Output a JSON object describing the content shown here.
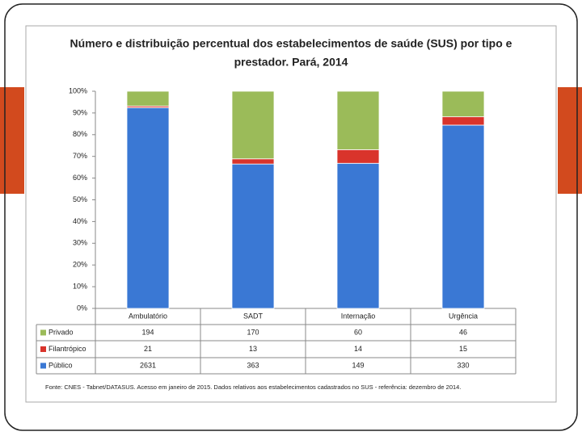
{
  "chart_data": {
    "type": "bar",
    "stacking": "percent",
    "title": [
      "Número e distribuição percentual dos estabelecimentos de saúde (SUS) por tipo e",
      "prestador. Pará, 2014"
    ],
    "categories": [
      "Ambulatório",
      "SADT",
      "Internação",
      "Urgência"
    ],
    "series": [
      {
        "name": "Privado",
        "color": "#9bbb59",
        "values": [
          194,
          170,
          60,
          46
        ]
      },
      {
        "name": "Filantrópico",
        "color": "#d9342b",
        "values": [
          21,
          13,
          14,
          15
        ]
      },
      {
        "name": "Público",
        "color": "#3a78d4",
        "values": [
          2631,
          363,
          149,
          330
        ]
      }
    ],
    "ylim": [
      0,
      100
    ],
    "yticks": [
      {
        "value": 0,
        "label": "0%"
      },
      {
        "value": 10,
        "label": "10%"
      },
      {
        "value": 20,
        "label": "20%"
      },
      {
        "value": 30,
        "label": "30%"
      },
      {
        "value": 40,
        "label": "40%"
      },
      {
        "value": 50,
        "label": "50%"
      },
      {
        "value": 60,
        "label": "60%"
      },
      {
        "value": 70,
        "label": "70%"
      },
      {
        "value": 80,
        "label": "80%"
      },
      {
        "value": 90,
        "label": "90%"
      },
      {
        "value": 100,
        "label": "100%"
      }
    ],
    "note": "Fonte: CNES - Tabnet/DATASUS. Acesso em janeiro de 2015. Dados relativos aos estabelecimentos cadastrados no SUS - referência: dezembro de 2014."
  }
}
